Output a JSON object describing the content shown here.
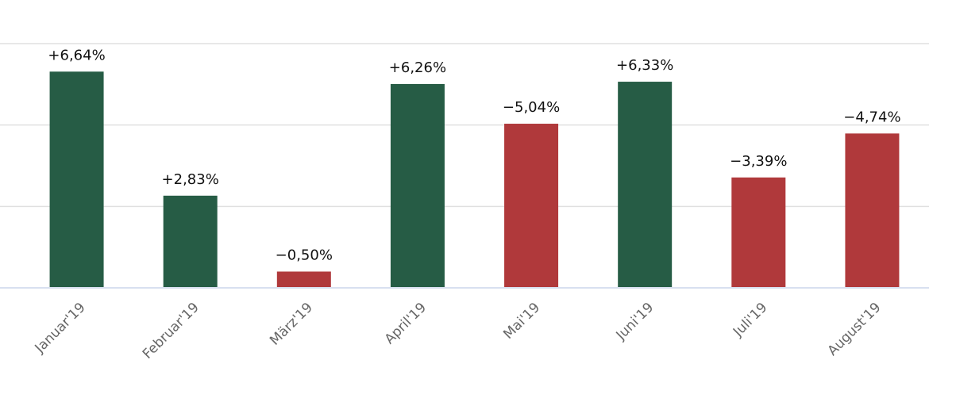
{
  "chart_data": {
    "type": "bar",
    "categories": [
      "Januar'19",
      "Februar'19",
      "März'19",
      "April'19",
      "Mai'19",
      "Juni'19",
      "Juli'19",
      "August'19"
    ],
    "values": [
      6.64,
      2.83,
      -0.5,
      6.26,
      -5.04,
      6.33,
      -3.39,
      -4.74
    ],
    "value_labels": [
      "+6,64%",
      "+2,83%",
      "−0,50%",
      "+6,26%",
      "−5,04%",
      "+6,33%",
      "−3,39%",
      "−4,74%"
    ],
    "positive_color": "#265c45",
    "negative_color": "#b0393b",
    "ylim": [
      0,
      7.5
    ],
    "yticks": [
      0,
      2.5,
      5,
      7.5
    ],
    "grid": true
  }
}
